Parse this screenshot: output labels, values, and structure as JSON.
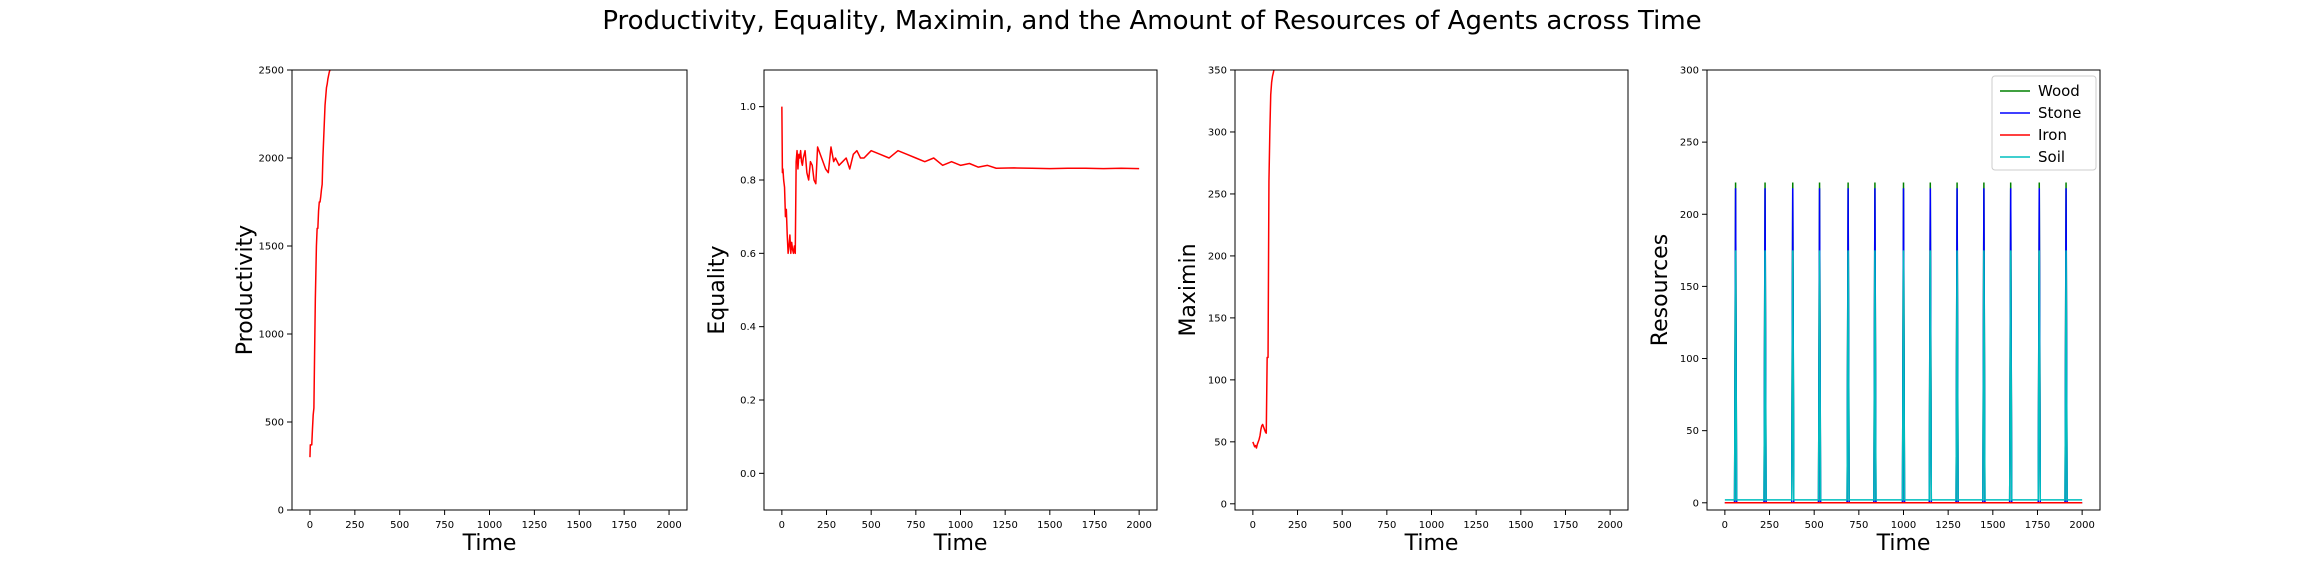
{
  "figure": {
    "title": "Productivity, Equality, Maximin, and the Amount of Resources of Agents across Time"
  },
  "chart_data": [
    {
      "type": "line",
      "xlabel": "Time",
      "ylabel": "Productivity",
      "xlim": [
        -100,
        2100
      ],
      "ylim": [
        0,
        2500
      ],
      "xticks": [
        0,
        250,
        500,
        750,
        1000,
        1250,
        1500,
        1750,
        2000
      ],
      "yticks": [
        0,
        500,
        1000,
        1500,
        2000,
        2500
      ],
      "series": [
        {
          "color": "#ff0000",
          "x": [
            0,
            2,
            5,
            10,
            14,
            18,
            22,
            26,
            30,
            33,
            36,
            40,
            44,
            48,
            52,
            56,
            60,
            64,
            68,
            72,
            76,
            80,
            84,
            88,
            92,
            96,
            100,
            104,
            108,
            112,
            116
          ],
          "y": [
            300,
            370,
            370,
            370,
            460,
            540,
            580,
            900,
            1200,
            1350,
            1500,
            1600,
            1600,
            1700,
            1750,
            1750,
            1780,
            1820,
            1850,
            2000,
            2100,
            2200,
            2300,
            2350,
            2400,
            2420,
            2450,
            2470,
            2490,
            2500,
            2520
          ]
        }
      ]
    },
    {
      "type": "line",
      "xlabel": "Time",
      "ylabel": "Equality",
      "xlim": [
        -100,
        2100
      ],
      "ylim": [
        -0.1,
        1.1
      ],
      "xticks": [
        0,
        250,
        500,
        750,
        1000,
        1250,
        1500,
        1750,
        2000
      ],
      "yticks": [
        0.0,
        0.2,
        0.4,
        0.6,
        0.8,
        1.0
      ],
      "series": [
        {
          "color": "#ff0000",
          "x": [
            0,
            3,
            6,
            10,
            15,
            20,
            25,
            30,
            35,
            40,
            45,
            50,
            55,
            60,
            65,
            70,
            75,
            80,
            85,
            90,
            95,
            100,
            105,
            110,
            115,
            120,
            130,
            140,
            150,
            160,
            170,
            180,
            190,
            200,
            215,
            230,
            245,
            260,
            275,
            290,
            300,
            320,
            340,
            360,
            380,
            400,
            420,
            440,
            460,
            480,
            500,
            550,
            600,
            650,
            700,
            750,
            800,
            850,
            900,
            950,
            1000,
            1050,
            1100,
            1150,
            1200,
            1300,
            1400,
            1500,
            1600,
            1700,
            1800,
            1900,
            2000
          ],
          "y": [
            1.0,
            0.82,
            0.83,
            0.8,
            0.78,
            0.7,
            0.72,
            0.65,
            0.6,
            0.62,
            0.65,
            0.6,
            0.63,
            0.61,
            0.6,
            0.62,
            0.6,
            0.85,
            0.88,
            0.83,
            0.87,
            0.86,
            0.88,
            0.85,
            0.84,
            0.86,
            0.88,
            0.82,
            0.8,
            0.85,
            0.84,
            0.8,
            0.79,
            0.89,
            0.87,
            0.85,
            0.83,
            0.82,
            0.89,
            0.85,
            0.86,
            0.84,
            0.85,
            0.86,
            0.83,
            0.87,
            0.88,
            0.86,
            0.86,
            0.87,
            0.88,
            0.87,
            0.86,
            0.88,
            0.87,
            0.86,
            0.85,
            0.86,
            0.84,
            0.85,
            0.84,
            0.845,
            0.835,
            0.84,
            0.832,
            0.833,
            0.832,
            0.831,
            0.832,
            0.832,
            0.831,
            0.832,
            0.831
          ]
        }
      ]
    },
    {
      "type": "line",
      "xlabel": "Time",
      "ylabel": "Maximin",
      "xlim": [
        -100,
        2100
      ],
      "ylim": [
        -5,
        350
      ],
      "xticks": [
        0,
        250,
        500,
        750,
        1000,
        1250,
        1500,
        1750,
        2000
      ],
      "yticks": [
        0,
        50,
        100,
        150,
        200,
        250,
        300,
        350
      ],
      "series": [
        {
          "color": "#ff0000",
          "x": [
            0,
            5,
            10,
            15,
            20,
            25,
            30,
            35,
            40,
            45,
            50,
            55,
            60,
            65,
            70,
            75,
            80,
            85,
            90,
            95,
            100,
            105,
            110,
            115,
            120
          ],
          "y": [
            50,
            48,
            46,
            47,
            45,
            48,
            50,
            52,
            55,
            60,
            63,
            64,
            62,
            60,
            58,
            57,
            118,
            118,
            260,
            300,
            330,
            340,
            345,
            348,
            352
          ]
        }
      ]
    },
    {
      "type": "line",
      "xlabel": "Time",
      "ylabel": "Resources",
      "xlim": [
        -100,
        2100
      ],
      "ylim": [
        -5,
        300
      ],
      "xticks": [
        0,
        250,
        500,
        750,
        1000,
        1250,
        1500,
        1750,
        2000
      ],
      "yticks": [
        0,
        50,
        100,
        150,
        200,
        250,
        300
      ],
      "legend_position": "upper right",
      "spike_times": [
        60,
        225,
        380,
        530,
        690,
        840,
        1000,
        1150,
        1300,
        1450,
        1600,
        1760,
        1910
      ],
      "series": [
        {
          "name": "Wood",
          "color": "#008000",
          "peak": 222,
          "baseline": 0
        },
        {
          "name": "Stone",
          "color": "#0000ff",
          "peak": 218,
          "baseline": 0
        },
        {
          "name": "Iron",
          "color": "#ff0000",
          "peak": 0,
          "baseline": 0
        },
        {
          "name": "Soil",
          "color": "#00bfbf",
          "peak": 175,
          "baseline": 2
        }
      ],
      "x_end": 2000
    }
  ]
}
